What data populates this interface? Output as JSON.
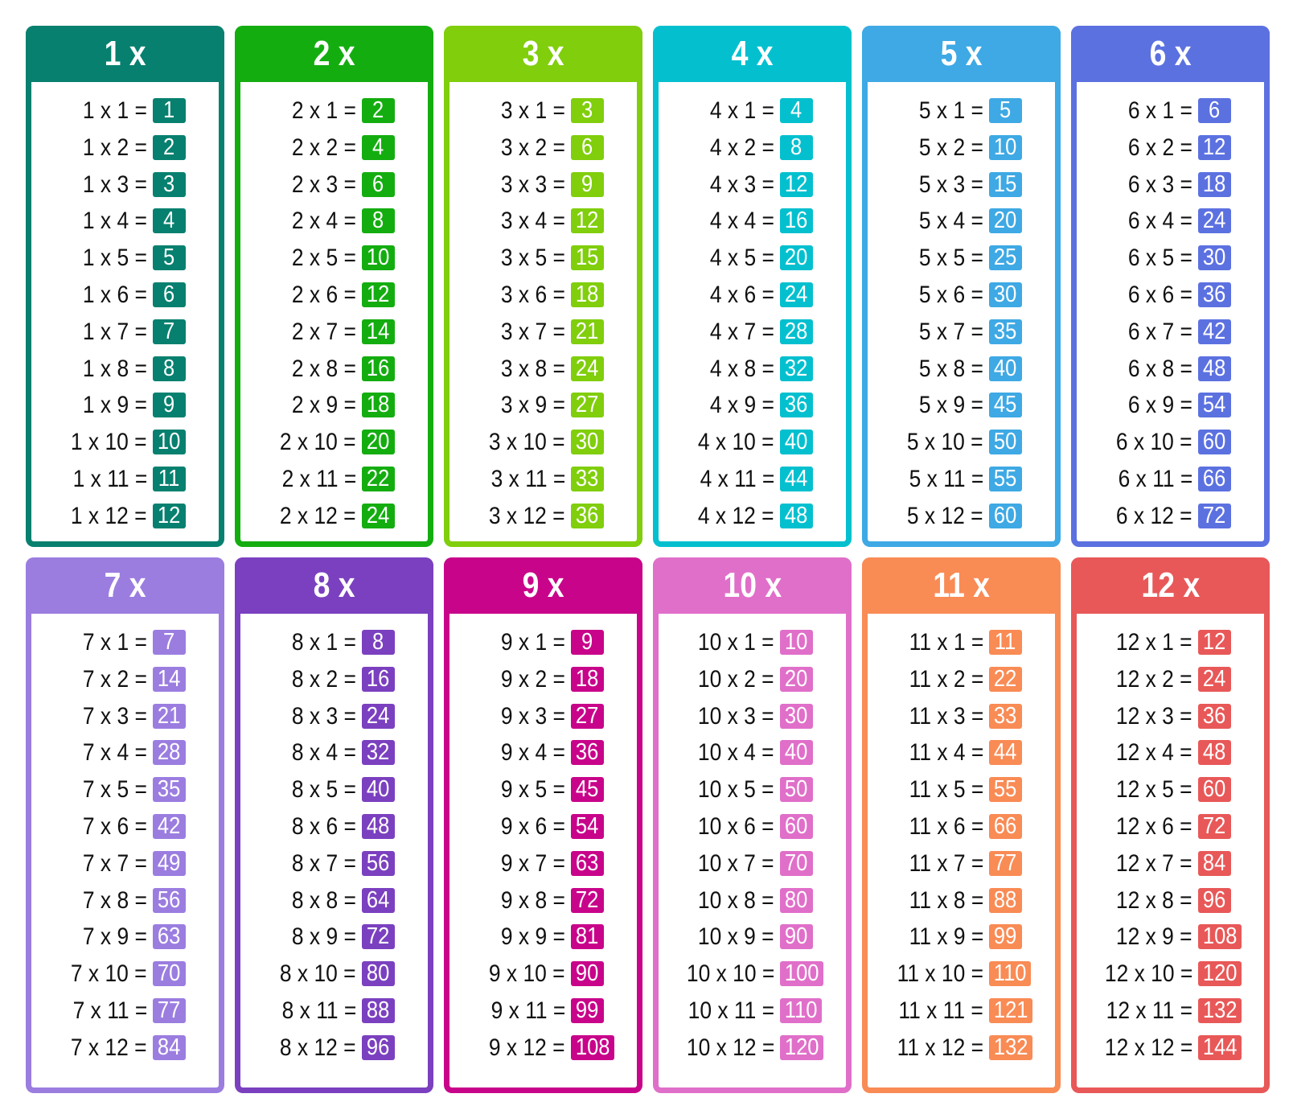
{
  "tables": [
    {
      "header": "1 x",
      "color": "#07806f",
      "rows": [
        [
          "1 x 1 =",
          "1"
        ],
        [
          "1 x 2 =",
          "2"
        ],
        [
          "1 x 3 =",
          "3"
        ],
        [
          "1 x 4 =",
          "4"
        ],
        [
          "1 x 5 =",
          "5"
        ],
        [
          "1 x 6 =",
          "6"
        ],
        [
          "1 x 7 =",
          "7"
        ],
        [
          "1 x 8 =",
          "8"
        ],
        [
          "1 x 9 =",
          "9"
        ],
        [
          "1 x 10 =",
          "10"
        ],
        [
          "1 x 11 =",
          "11"
        ],
        [
          "1 x 12 =",
          "12"
        ]
      ]
    },
    {
      "header": "2 x",
      "color": "#14ad10",
      "rows": [
        [
          "2 x 1 =",
          "2"
        ],
        [
          "2 x 2 =",
          "4"
        ],
        [
          "2 x 3 =",
          "6"
        ],
        [
          "2 x 4 =",
          "8"
        ],
        [
          "2 x 5 =",
          "10"
        ],
        [
          "2 x 6 =",
          "12"
        ],
        [
          "2 x 7 =",
          "14"
        ],
        [
          "2 x 8 =",
          "16"
        ],
        [
          "2 x 9 =",
          "18"
        ],
        [
          "2 x 10 =",
          "20"
        ],
        [
          "2 x 11 =",
          "22"
        ],
        [
          "2 x 12 =",
          "24"
        ]
      ]
    },
    {
      "header": "3 x",
      "color": "#80ce0c",
      "rows": [
        [
          "3 x 1 =",
          "3"
        ],
        [
          "3 x 2 =",
          "6"
        ],
        [
          "3 x 3 =",
          "9"
        ],
        [
          "3 x 4 =",
          "12"
        ],
        [
          "3 x 5 =",
          "15"
        ],
        [
          "3 x 6 =",
          "18"
        ],
        [
          "3 x 7 =",
          "21"
        ],
        [
          "3 x 8 =",
          "24"
        ],
        [
          "3 x 9 =",
          "27"
        ],
        [
          "3 x 10 =",
          "30"
        ],
        [
          "3 x 11 =",
          "33"
        ],
        [
          "3 x 12 =",
          "36"
        ]
      ]
    },
    {
      "header": "4 x",
      "color": "#04c0cf",
      "rows": [
        [
          "4 x 1 =",
          "4"
        ],
        [
          "4 x 2 =",
          "8"
        ],
        [
          "4 x 3 =",
          "12"
        ],
        [
          "4 x 4 =",
          "16"
        ],
        [
          "4 x 5 =",
          "20"
        ],
        [
          "4 x 6 =",
          "24"
        ],
        [
          "4 x 7 =",
          "28"
        ],
        [
          "4 x 8 =",
          "32"
        ],
        [
          "4 x 9 =",
          "36"
        ],
        [
          "4 x 10 =",
          "40"
        ],
        [
          "4 x 11 =",
          "44"
        ],
        [
          "4 x 12 =",
          "48"
        ]
      ]
    },
    {
      "header": "5 x",
      "color": "#3ea9e4",
      "rows": [
        [
          "5 x 1 =",
          "5"
        ],
        [
          "5 x 2 =",
          "10"
        ],
        [
          "5 x 3 =",
          "15"
        ],
        [
          "5 x 4 =",
          "20"
        ],
        [
          "5 x 5 =",
          "25"
        ],
        [
          "5 x 6 =",
          "30"
        ],
        [
          "5 x 7 =",
          "35"
        ],
        [
          "5 x 8 =",
          "40"
        ],
        [
          "5 x 9 =",
          "45"
        ],
        [
          "5 x 10 =",
          "50"
        ],
        [
          "5 x 11 =",
          "55"
        ],
        [
          "5 x 12 =",
          "60"
        ]
      ]
    },
    {
      "header": "6 x",
      "color": "#5c71e0",
      "rows": [
        [
          "6 x 1 =",
          "6"
        ],
        [
          "6 x 2 =",
          "12"
        ],
        [
          "6 x 3 =",
          "18"
        ],
        [
          "6 x 4 =",
          "24"
        ],
        [
          "6 x 5 =",
          "30"
        ],
        [
          "6 x 6 =",
          "36"
        ],
        [
          "6 x 7 =",
          "42"
        ],
        [
          "6 x 8 =",
          "48"
        ],
        [
          "6 x 9 =",
          "54"
        ],
        [
          "6 x 10 =",
          "60"
        ],
        [
          "6 x 11 =",
          "66"
        ],
        [
          "6 x 12 =",
          "72"
        ]
      ]
    },
    {
      "header": "7 x",
      "color": "#9b7de0",
      "rows": [
        [
          "7 x 1 =",
          "7"
        ],
        [
          "7 x 2 =",
          "14"
        ],
        [
          "7 x 3 =",
          "21"
        ],
        [
          "7 x 4 =",
          "28"
        ],
        [
          "7 x 5 =",
          "35"
        ],
        [
          "7 x 6 =",
          "42"
        ],
        [
          "7 x 7 =",
          "49"
        ],
        [
          "7 x 8 =",
          "56"
        ],
        [
          "7 x 9 =",
          "63"
        ],
        [
          "7 x 10 =",
          "70"
        ],
        [
          "7 x 11 =",
          "77"
        ],
        [
          "7 x 12 =",
          "84"
        ]
      ]
    },
    {
      "header": "8 x",
      "color": "#7b40bf",
      "rows": [
        [
          "8 x 1 =",
          "8"
        ],
        [
          "8 x 2 =",
          "16"
        ],
        [
          "8 x 3 =",
          "24"
        ],
        [
          "8 x 4 =",
          "32"
        ],
        [
          "8 x 5 =",
          "40"
        ],
        [
          "8 x 6 =",
          "48"
        ],
        [
          "8 x 7 =",
          "56"
        ],
        [
          "8 x 8 =",
          "64"
        ],
        [
          "8 x 9 =",
          "72"
        ],
        [
          "8 x 10 =",
          "80"
        ],
        [
          "8 x 11 =",
          "88"
        ],
        [
          "8 x 12 =",
          "96"
        ]
      ]
    },
    {
      "header": "9 x",
      "color": "#c8048a",
      "rows": [
        [
          "9 x 1 =",
          "9"
        ],
        [
          "9 x 2 =",
          "18"
        ],
        [
          "9 x 3 =",
          "27"
        ],
        [
          "9 x 4 =",
          "36"
        ],
        [
          "9 x 5 =",
          "45"
        ],
        [
          "9 x 6 =",
          "54"
        ],
        [
          "9 x 7 =",
          "63"
        ],
        [
          "9 x 8 =",
          "72"
        ],
        [
          "9 x 9 =",
          "81"
        ],
        [
          "9 x 10 =",
          "90"
        ],
        [
          "9 x 11 =",
          "99"
        ],
        [
          "9 x 12 =",
          "108"
        ]
      ]
    },
    {
      "header": "10 x",
      "color": "#e06fc9",
      "rows": [
        [
          "10 x 1 =",
          "10"
        ],
        [
          "10 x 2 =",
          "20"
        ],
        [
          "10 x 3 =",
          "30"
        ],
        [
          "10 x 4 =",
          "40"
        ],
        [
          "10 x 5 =",
          "50"
        ],
        [
          "10 x 6 =",
          "60"
        ],
        [
          "10 x 7 =",
          "70"
        ],
        [
          "10 x 8 =",
          "80"
        ],
        [
          "10 x 9 =",
          "90"
        ],
        [
          "10 x 10 =",
          "100"
        ],
        [
          "10 x 11 =",
          "110"
        ],
        [
          "10 x 12 =",
          "120"
        ]
      ]
    },
    {
      "header": "11 x",
      "color": "#f98b55",
      "rows": [
        [
          "11 x 1 =",
          "11"
        ],
        [
          "11 x 2 =",
          "22"
        ],
        [
          "11 x 3 =",
          "33"
        ],
        [
          "11 x 4 =",
          "44"
        ],
        [
          "11 x 5 =",
          "55"
        ],
        [
          "11 x 6 =",
          "66"
        ],
        [
          "11 x 7 =",
          "77"
        ],
        [
          "11 x 8 =",
          "88"
        ],
        [
          "11 x 9 =",
          "99"
        ],
        [
          "11 x 10 =",
          "110"
        ],
        [
          "11 x 11 =",
          "121"
        ],
        [
          "11 x 12 =",
          "132"
        ]
      ]
    },
    {
      "header": "12 x",
      "color": "#e85858",
      "rows": [
        [
          "12 x 1 =",
          "12"
        ],
        [
          "12 x 2 =",
          "24"
        ],
        [
          "12 x 3 =",
          "36"
        ],
        [
          "12 x 4 =",
          "48"
        ],
        [
          "12 x 5 =",
          "60"
        ],
        [
          "12 x 6 =",
          "72"
        ],
        [
          "12 x 7 =",
          "84"
        ],
        [
          "12 x 8 =",
          "96"
        ],
        [
          "12 x 9 =",
          "108"
        ],
        [
          "12 x 10 =",
          "120"
        ],
        [
          "12 x 11 =",
          "132"
        ],
        [
          "12 x 12 =",
          "144"
        ]
      ]
    }
  ]
}
